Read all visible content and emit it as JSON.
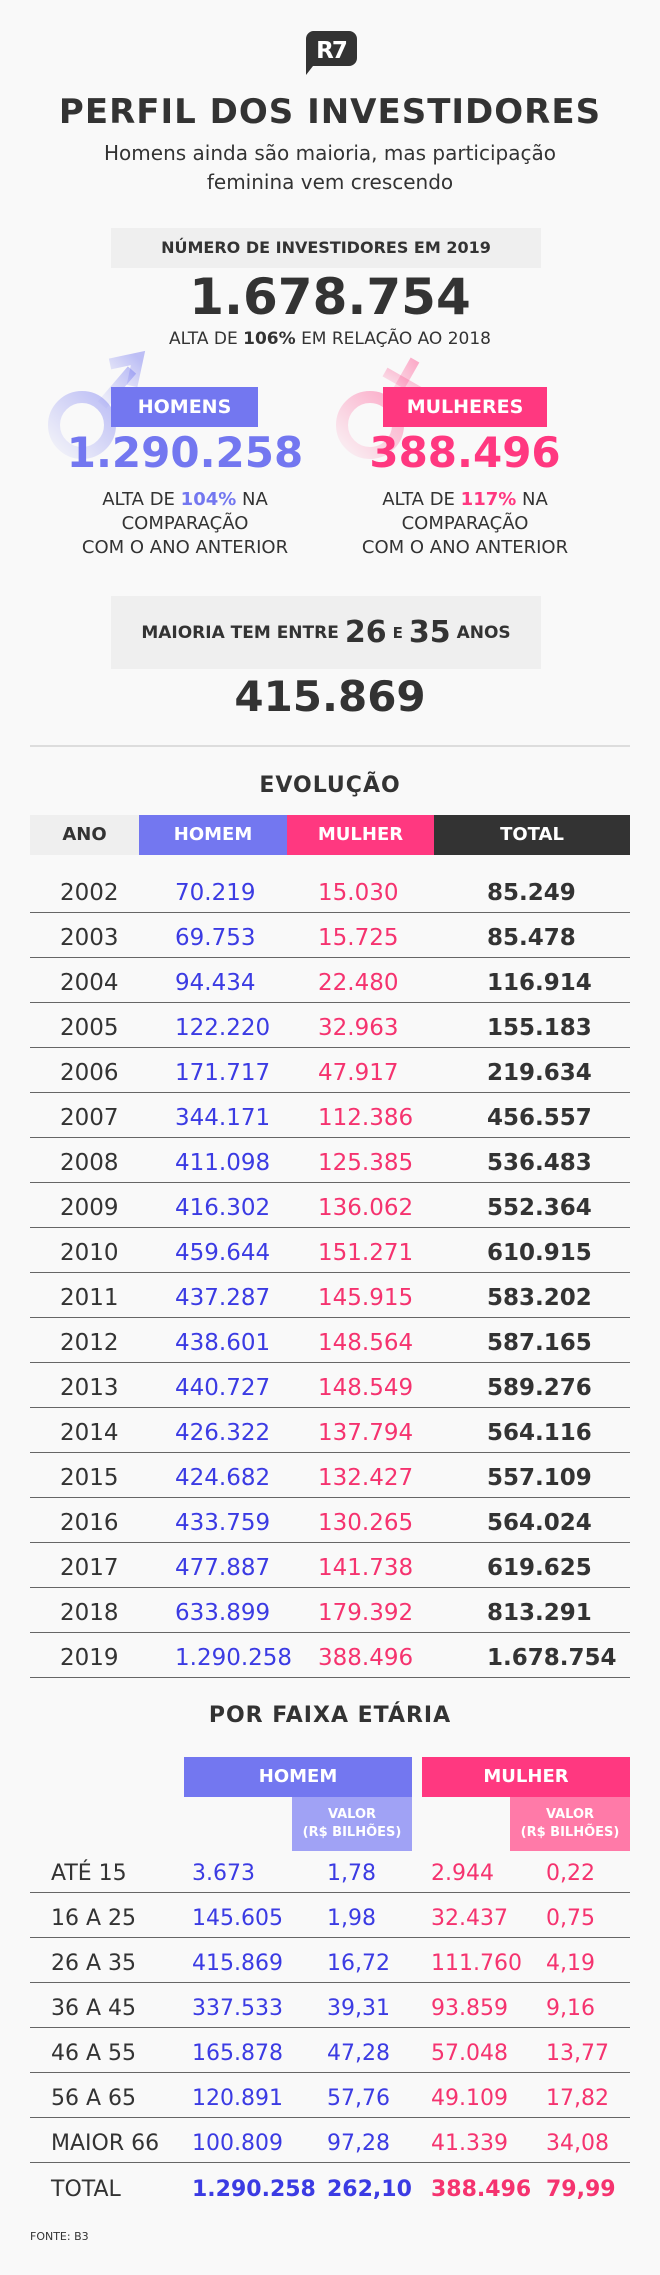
{
  "logo": {
    "text": "R7"
  },
  "header": {
    "title": "PERFIL DOS INVESTIDORES",
    "subtitle_line1": "Homens ainda são maioria, mas participação",
    "subtitle_line2": "feminina vem crescendo"
  },
  "summary": {
    "label": "NÚMERO DE INVESTIDORES EM 2019",
    "total": "1.678.754",
    "growth_prefix": "ALTA DE",
    "growth_value": "106%",
    "growth_suffix": "EM RELAÇÃO AO 2018"
  },
  "men": {
    "label": "HOMENS",
    "value": "1.290.258",
    "growth_prefix": "ALTA DE",
    "growth_value": "104%",
    "growth_suffix": "NA",
    "line2": "COMPARAÇÃO",
    "line3": "COM O ANO ANTERIOR",
    "icon": "male-symbol-icon"
  },
  "women": {
    "label": "MULHERES",
    "value": "388.496",
    "growth_prefix": "ALTA DE",
    "growth_value": "117%",
    "growth_suffix": "NA",
    "line2": "COMPARAÇÃO",
    "line3": "COM O ANO ANTERIOR",
    "icon": "female-symbol-icon"
  },
  "majority": {
    "prefix": "MAIORIA TEM ENTRE",
    "from": "26",
    "connector": "E",
    "to": "35",
    "suffix": "ANOS",
    "value": "415.869"
  },
  "evolution": {
    "title": "EVOLUÇÃO",
    "headers": [
      "ANO",
      "HOMEM",
      "MULHER",
      "TOTAL"
    ],
    "rows": [
      [
        "2002",
        "70.219",
        "15.030",
        "85.249"
      ],
      [
        "2003",
        "69.753",
        "15.725",
        "85.478"
      ],
      [
        "2004",
        "94.434",
        "22.480",
        "116.914"
      ],
      [
        "2005",
        "122.220",
        "32.963",
        "155.183"
      ],
      [
        "2006",
        "171.717",
        "47.917",
        "219.634"
      ],
      [
        "2007",
        "344.171",
        "112.386",
        "456.557"
      ],
      [
        "2008",
        "411.098",
        "125.385",
        "536.483"
      ],
      [
        "2009",
        "416.302",
        "136.062",
        "552.364"
      ],
      [
        "2010",
        "459.644",
        "151.271",
        "610.915"
      ],
      [
        "2011",
        "437.287",
        "145.915",
        "583.202"
      ],
      [
        "2012",
        "438.601",
        "148.564",
        "587.165"
      ],
      [
        "2013",
        "440.727",
        "148.549",
        "589.276"
      ],
      [
        "2014",
        "426.322",
        "137.794",
        "564.116"
      ],
      [
        "2015",
        "424.682",
        "132.427",
        "557.109"
      ],
      [
        "2016",
        "433.759",
        "130.265",
        "564.024"
      ],
      [
        "2017",
        "477.887",
        "141.738",
        "619.625"
      ],
      [
        "2018",
        "633.899",
        "179.392",
        "813.291"
      ],
      [
        "2019",
        "1.290.258",
        "388.496",
        "1.678.754"
      ]
    ]
  },
  "age": {
    "title": "POR FAIXA ETÁRIA",
    "men_header": "HOMEM",
    "women_header": "MULHER",
    "value_header_line1": "VALOR",
    "value_header_line2": "(R$ BILHÕES)",
    "rows": [
      [
        "ATÉ 15",
        "3.673",
        "1,78",
        "2.944",
        "0,22"
      ],
      [
        "16 A 25",
        "145.605",
        "1,98",
        "32.437",
        "0,75"
      ],
      [
        "26 A 35",
        "415.869",
        "16,72",
        "111.760",
        "4,19"
      ],
      [
        "36 A 45",
        "337.533",
        "39,31",
        "93.859",
        "9,16"
      ],
      [
        "46 A 55",
        "165.878",
        "47,28",
        "57.048",
        "13,77"
      ],
      [
        "56 A 65",
        "120.891",
        "57,76",
        "49.109",
        "17,82"
      ],
      [
        "MAIOR 66",
        "100.809",
        "97,28",
        "41.339",
        "34,08"
      ]
    ],
    "total": [
      "TOTAL",
      "1.290.258",
      "262,10",
      "388.496",
      "79,99"
    ]
  },
  "source": "FONTE: B3",
  "colors": {
    "men": "#7377f0",
    "women": "#ff3880",
    "men_text": "#3b3be3",
    "women_text": "#f5336f",
    "dark": "#333333",
    "men_light": "#a0a2f5",
    "women_light": "#ff7aa8"
  }
}
